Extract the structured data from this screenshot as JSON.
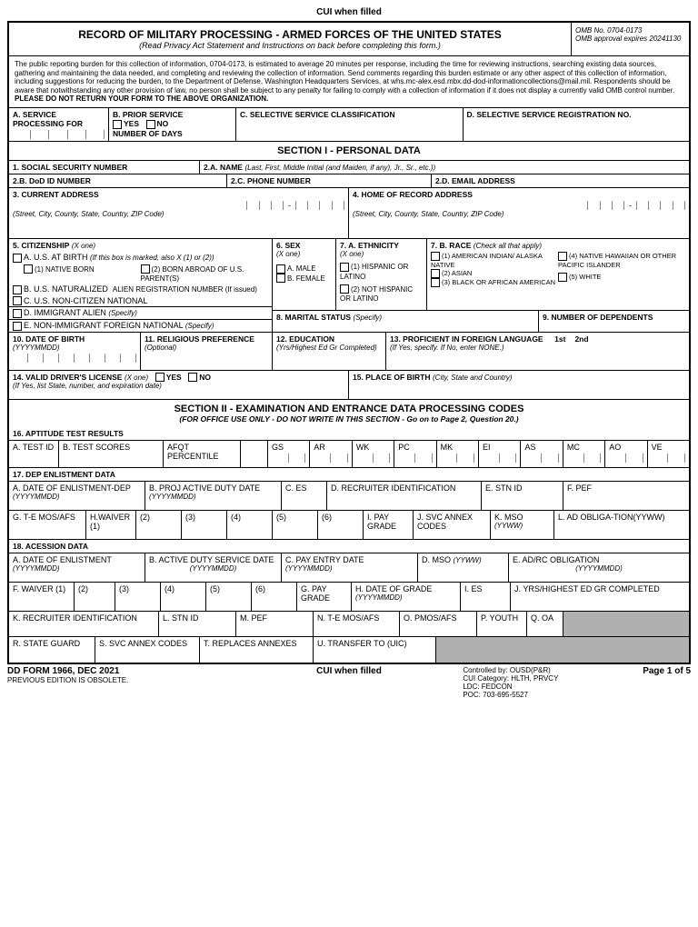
{
  "cui_label": "CUI when filled",
  "header": {
    "title": "RECORD OF MILITARY PROCESSING - ARMED FORCES OF THE UNITED STATES",
    "subtitle": "(Read Privacy Act Statement and Instructions on back before completing this form.)",
    "omb_no": "OMB No. 0704-0173",
    "omb_exp": "OMB approval expires 20241130"
  },
  "burden": {
    "text": "The public reporting burden for this collection of information, 0704-0173, is estimated to average 20 minutes per response, including the time for reviewing instructions, searching existing data sources, gathering and maintaining the data needed, and completing and reviewing the collection of information. Send comments regarding this burden estimate or any other aspect of this collection of information, including suggestions for reducing the burden, to the Department of Defense, Washington Headquarters Services, at whs.mc-alex.esd.mbx.dd-dod-informationcollections@mail.mil. Respondents should be aware that notwithstanding any other provision of law, no person shall be subject to any penalty for failing to comply with a collection of information if it does not display a currently valid OMB control number.",
    "bold_line": "PLEASE DO NOT RETURN YOUR FORM TO THE ABOVE ORGANIZATION."
  },
  "rowA": {
    "a_label": "A. SERVICE PROCESSING FOR",
    "b_label": "B. PRIOR SERVICE",
    "yes": "YES",
    "no": "NO",
    "days": "NUMBER OF DAYS",
    "c_label": "C. SELECTIVE SERVICE CLASSIFICATION",
    "d_label": "D. SELECTIVE SERVICE REGISTRATION NO."
  },
  "section1": {
    "title": "SECTION I - PERSONAL DATA",
    "f1": "1. SOCIAL SECURITY  NUMBER",
    "f2a": "2.A. NAME",
    "f2a_note": "(Last, First, Middle Initial (and Maiden, if any), Jr., Sr., etc.))",
    "f2b": "2.B. DoD ID NUMBER",
    "f2c": "2.C. PHONE NUMBER",
    "f2d": "2.D. EMAIL ADDRESS",
    "f3": "3. CURRENT ADDRESS",
    "f3_note": "(Street, City, County, State, Country, ZIP Code)",
    "f4": "4. HOME OF RECORD ADDRESS",
    "f4_note": "(Street, City, County, State, Country, ZIP Code)",
    "f5": "5. CITIZENSHIP",
    "xone": "(X one)",
    "f5a": "A. U.S. AT BIRTH",
    "f5a_note": "(If this box is marked, also X (1) or (2))",
    "f5a1": "(1) NATIVE BORN",
    "f5a2": "(2) BORN ABROAD OF U.S. PARENT(S)",
    "f5b": "B. U.S. NATURALIZED",
    "f5b_note": "ALIEN REGISTRATION NUMBER (If issued)",
    "f5c": "C. U.S. NON-CITIZEN NATIONAL",
    "f5d": "D. IMMIGRANT ALIEN",
    "specify": "(Specify)",
    "f5e": "E. NON-IMMIGRANT FOREIGN NATIONAL",
    "f6": "6. SEX",
    "f6a": "A. MALE",
    "f6b": "B. FEMALE",
    "f7a": "7. A. ETHNICITY",
    "f7a1": "(1) HISPANIC OR LATINO",
    "f7a2": "(2) NOT HISPANIC OR LATINO",
    "f7b": "7. B. RACE",
    "f7b_note": "(Check all that apply)",
    "f7b1": "(1) AMERICAN INDIAN/ ALASKA NATIVE",
    "f7b2": "(2) ASIAN",
    "f7b3": "(3) BLACK OR AFRICAN AMERICAN",
    "f7b4": "(4) NATIVE HAWAIIAN OR OTHER PACIFIC ISLANDER",
    "f7b5": "(5) WHITE",
    "f8": "8. MARITAL STATUS",
    "f9": "9. NUMBER OF DEPENDENTS",
    "f10": "10. DATE OF BIRTH",
    "f10_note": "(YYYYMMDD)",
    "f11": "11. RELIGIOUS PREFERENCE",
    "f11_note": "(Optional)",
    "f12": "12. EDUCATION",
    "f12_note": "(Yrs/Highest Ed Gr Completed)",
    "f13": "13. PROFICIENT IN FOREIGN LANGUAGE",
    "f13_note": "(If Yes, specify. If No, enter NONE.)",
    "f13_1st": "1st",
    "f13_2nd": "2nd",
    "f14": "14. VALID DRIVER'S LICENSE",
    "f14_note": "(If Yes, list State, number, and expiration date)",
    "f15": "15. PLACE OF BIRTH",
    "f15_note": "(City, State and Country)"
  },
  "section2": {
    "title": "SECTION II - EXAMINATION AND ENTRANCE DATA PROCESSING CODES",
    "sub": "(FOR OFFICE USE ONLY - DO NOT WRITE IN THIS SECTION - Go on to Page 2, Question 20.)",
    "f16": "16. APTITUDE TEST RESULTS",
    "f16a": "A. TEST ID",
    "f16b": "B. TEST SCORES",
    "afqt": "AFQT PERCENTILE",
    "scores": [
      "GS",
      "AR",
      "WK",
      "PC",
      "MK",
      "EI",
      "AS",
      "MC",
      "AO",
      "VE"
    ],
    "f17": "17. DEP ENLISTMENT DATA",
    "f17a": "A. DATE OF ENLISTMENT-DEP",
    "yyyymmdd": "(YYYYMMDD)",
    "f17b": "B. PROJ ACTIVE DUTY DATE",
    "f17c": "C. ES",
    "f17d": "D. RECRUITER IDENTIFICATION",
    "f17e": "E. STN ID",
    "f17f": "F. PEF",
    "f17g": "G. T-E MOS/AFS",
    "f17h": "H.WAIVER (1)",
    "w2": "(2)",
    "w3": "(3)",
    "w4": "(4)",
    "w5": "(5)",
    "w6": "(6)",
    "f17i": "I. PAY GRADE",
    "f17j": "J. SVC ANNEX CODES",
    "f17k": "K. MSO",
    "yyww": "(YYWW)",
    "f17l": "L. AD OBLIGA-TION(YYWW)",
    "f18": "18. ACESSION DATA",
    "f18a": "A. DATE OF ENLISTMENT",
    "f18b": "B. ACTIVE DUTY SERVICE DATE",
    "f18c": "C. PAY ENTRY DATE",
    "f18d": "D. MSO",
    "f18e": "E. AD/RC OBLIGATION",
    "f18f": "F. WAIVER (1)",
    "f18g": "G. PAY GRADE",
    "f18h": "H. DATE OF  GRADE",
    "f18i": "I. ES",
    "f18j": "J. YRS/HIGHEST ED GR COMPLETED",
    "f18k": "K. RECRUITER IDENTIFICATION",
    "f18l": "L. STN ID",
    "f18m": "M. PEF",
    "f18n": "N. T-E MOS/AFS",
    "f18o": "O. PMOS/AFS",
    "f18p": "P. YOUTH",
    "f18q": "Q. OA",
    "f18r": "R. STATE GUARD",
    "f18s": "S. SVC ANNEX CODES",
    "f18t": "T. REPLACES ANNEXES",
    "f18u": "U. TRANSFER TO (UIC)"
  },
  "footer": {
    "form_no": "DD FORM 1966, DEC 2021",
    "obsolete": "PREVIOUS EDITION IS OBSOLETE.",
    "controlled": "Controlled by: OUSD(P&R)",
    "cui_cat": "CUI Category: HLTH, PRVCY",
    "ldc": "LDC: FEDCON",
    "poc": "POC: 703-695-5527",
    "page": "Page 1 of 5"
  }
}
